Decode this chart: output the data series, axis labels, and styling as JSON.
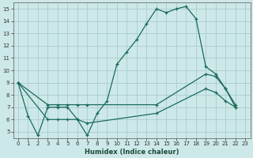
{
  "xlabel": "Humidex (Indice chaleur)",
  "xlim": [
    -0.5,
    23.5
  ],
  "ylim": [
    4.5,
    15.5
  ],
  "yticks": [
    5,
    6,
    7,
    8,
    9,
    10,
    11,
    12,
    13,
    14,
    15
  ],
  "xticks": [
    0,
    1,
    2,
    3,
    4,
    5,
    6,
    7,
    8,
    9,
    10,
    11,
    12,
    13,
    14,
    15,
    16,
    17,
    18,
    19,
    20,
    21,
    22,
    23
  ],
  "bg_color": "#cde8e8",
  "grid_color": "#aacccc",
  "line_color": "#1a6b5a",
  "line1_x": [
    0,
    1,
    2,
    3,
    4,
    5,
    6,
    7,
    8,
    9,
    10,
    11,
    12,
    13,
    14,
    15,
    16,
    17,
    18,
    19,
    20,
    21,
    22
  ],
  "line1_y": [
    9.0,
    6.3,
    4.7,
    7.0,
    7.0,
    7.0,
    6.0,
    4.7,
    6.5,
    7.5,
    10.5,
    11.5,
    12.5,
    13.8,
    15.0,
    14.7,
    15.0,
    15.2,
    14.2,
    10.3,
    9.7,
    8.5,
    7.0
  ],
  "line2_x": [
    0,
    3,
    4,
    5,
    6,
    7,
    14,
    19,
    20,
    21,
    22
  ],
  "line2_y": [
    9.0,
    7.2,
    7.2,
    7.2,
    7.2,
    7.2,
    7.2,
    9.7,
    9.5,
    8.5,
    7.2
  ],
  "line3_x": [
    0,
    3,
    4,
    5,
    6,
    7,
    14,
    19,
    20,
    21,
    22
  ],
  "line3_y": [
    9.0,
    6.0,
    6.0,
    6.0,
    6.0,
    5.7,
    6.5,
    8.5,
    8.2,
    7.5,
    7.0
  ]
}
